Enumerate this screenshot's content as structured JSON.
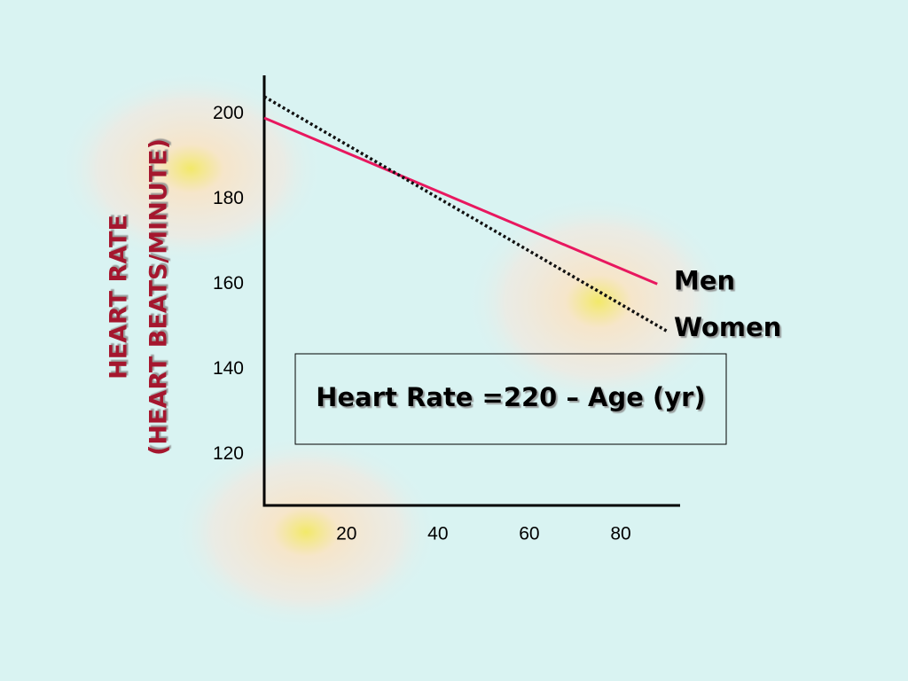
{
  "chart_data": {
    "type": "line",
    "y_label_lines": [
      "HEART RATE",
      "(HEART BEATS/MINUTE)"
    ],
    "annotation": "Heart Rate =220 – Age (yr)",
    "series": [
      {
        "name": "Men",
        "color": "#e8185f",
        "dashed": false,
        "x": [
          2,
          88
        ],
        "values": [
          199,
          160
        ]
      },
      {
        "name": "Women",
        "color": "#111111",
        "dashed": true,
        "x": [
          2,
          90
        ],
        "values": [
          204,
          149
        ]
      }
    ],
    "xlim": [
      2,
      93
    ],
    "xticks": [
      20,
      40,
      60,
      80
    ],
    "ylim": [
      108,
      209
    ],
    "yticks": [
      120,
      140,
      160,
      180,
      200
    ],
    "grid": false
  }
}
